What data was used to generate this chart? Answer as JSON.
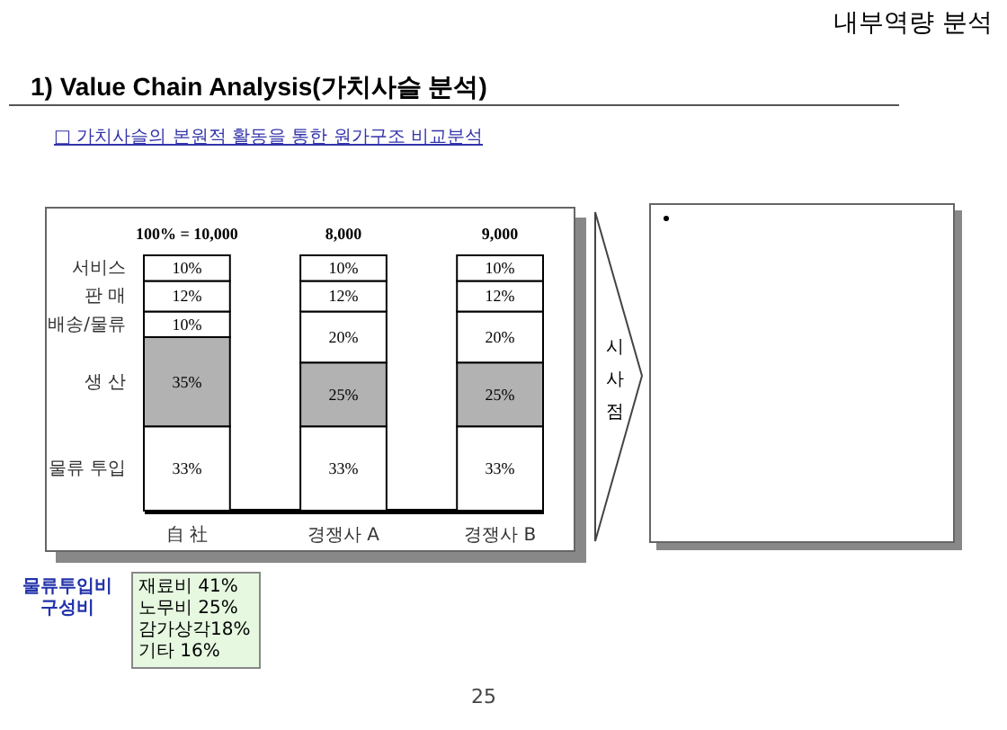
{
  "chart_data": {
    "type": "bar",
    "title": "1) Value Chain Analysis(가치사슬 분석)",
    "subtitle": "□ 가치사슬의 본원적 활동을 통한 원가구조 비교분석",
    "categories": [
      "自 社",
      "경쟁사 A",
      "경쟁사 B"
    ],
    "stacked": true,
    "series": [
      {
        "name": "물류 투입",
        "color": "#ffffff",
        "values": [
          33,
          33,
          33
        ],
        "value_labels": [
          "33%",
          "33%",
          "33%"
        ]
      },
      {
        "name": "생 산",
        "color": "#b2b2b2",
        "values": [
          35,
          25,
          25
        ],
        "value_labels": [
          "35%",
          "25%",
          "25%"
        ]
      },
      {
        "name": "배송/물류",
        "color": "#ffffff",
        "values": [
          10,
          20,
          20
        ],
        "value_labels": [
          "10%",
          "20%",
          "20%"
        ]
      },
      {
        "name": "판 매",
        "color": "#ffffff",
        "values": [
          12,
          12,
          12
        ],
        "value_labels": [
          "12%",
          "12%",
          "12%"
        ]
      },
      {
        "name": "서비스",
        "color": "#ffffff",
        "values": [
          10,
          10,
          10
        ],
        "value_labels": [
          "10%",
          "10%",
          "10%"
        ]
      }
    ],
    "annotations": [
      {
        "text": "100% = 10,000",
        "x": "自 社",
        "y": 100
      },
      {
        "text": "8,000",
        "x": "경쟁사 A",
        "y": 100
      },
      {
        "text": "9,000",
        "x": "경쟁사 B",
        "y": 100
      },
      "내부역량 분석",
      "시사점",
      "물류투입비 구성비",
      "재료비 41%",
      "노무비 25%",
      "감가상각18%",
      "기타 16%",
      "25"
    ]
  }
}
